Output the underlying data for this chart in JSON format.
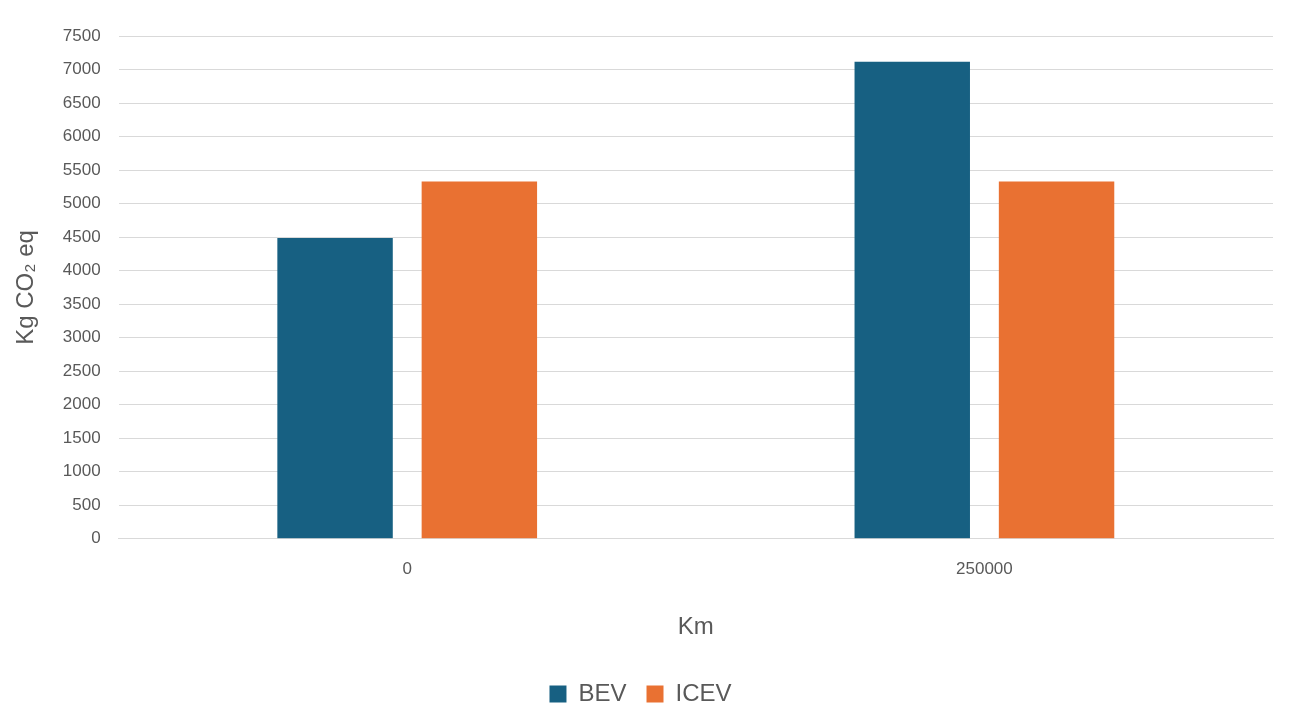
{
  "chart_data": {
    "type": "bar",
    "xlabel": "Km",
    "ylabel": "Kg CO₂ eq",
    "categories": [
      "0",
      "250000"
    ],
    "series": [
      {
        "name": "BEV",
        "color": "#176082",
        "values": [
          4490,
          7120
        ]
      },
      {
        "name": "ICEV",
        "color": "#e97132",
        "values": [
          5330,
          5330
        ]
      }
    ],
    "ylim": [
      0,
      7500
    ],
    "yticks": [
      0,
      500,
      1000,
      1500,
      2000,
      2500,
      3000,
      3500,
      4000,
      4500,
      5000,
      5500,
      6000,
      6500,
      7000,
      7500
    ],
    "grid": "y",
    "legend": "bottom"
  }
}
